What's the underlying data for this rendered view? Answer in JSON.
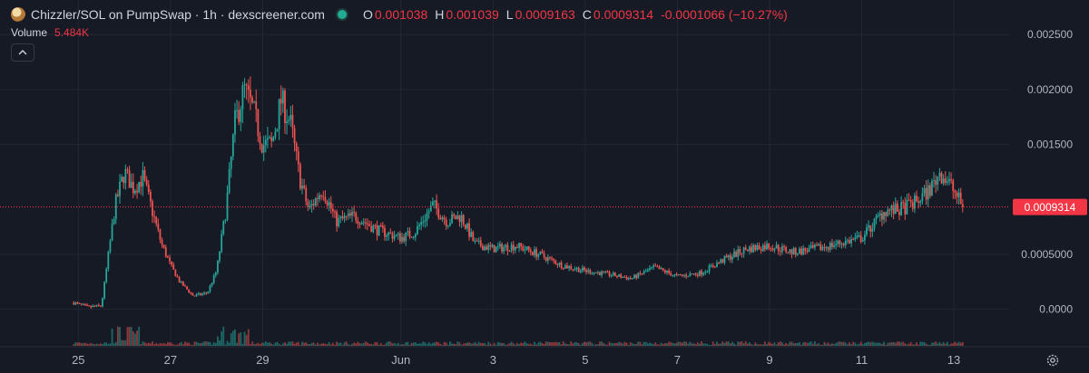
{
  "header": {
    "pair_title": "Chizzler/SOL on PumpSwap · 1h · dexscreener.com",
    "ohlc": [
      {
        "key": "O",
        "value": "0.001038"
      },
      {
        "key": "H",
        "value": "0.001039"
      },
      {
        "key": "L",
        "value": "0.0009163"
      },
      {
        "key": "C",
        "value": "0.0009314"
      }
    ],
    "change": "-0.0001066 (−10.27%)"
  },
  "volume": {
    "label": "Volume",
    "value": "5.484K"
  },
  "colors": {
    "background": "#161a25",
    "up": "#26a69a",
    "down": "#ef5350",
    "grid": "#232733",
    "text": "#b2b5be",
    "price_line": "#f23645"
  },
  "chart_data": {
    "type": "candlestick",
    "interval": "1h",
    "y_ticks": [
      "0.002500",
      "0.002000",
      "0.001500",
      "0.0005000",
      "0.0000"
    ],
    "y_tick_values": [
      0.0025,
      0.002,
      0.0015,
      0.0005,
      0.0
    ],
    "ylim": [
      -0.00025,
      0.00265
    ],
    "x_ticks": [
      "25",
      "27",
      "29",
      "Jun",
      "3",
      "5",
      "7",
      "9",
      "11",
      "13"
    ],
    "x_tick_days": [
      25,
      27,
      29,
      32,
      34,
      36,
      38,
      40,
      42,
      44
    ],
    "xlim_days": [
      23.3,
      45.2
    ],
    "last_price": 0.0009314,
    "last_price_label": "0.0009314",
    "price_path": [
      [
        24.9,
        6e-05
      ],
      [
        25.2,
        2e-05
      ],
      [
        25.5,
        3e-05
      ],
      [
        25.8,
        0.00095
      ],
      [
        26.0,
        0.00125
      ],
      [
        26.2,
        0.0011
      ],
      [
        26.4,
        0.0012
      ],
      [
        26.6,
        0.0009
      ],
      [
        26.8,
        0.0006
      ],
      [
        27.0,
        0.0004
      ],
      [
        27.2,
        0.00025
      ],
      [
        27.5,
        0.00012
      ],
      [
        27.8,
        0.00015
      ],
      [
        28.0,
        0.00035
      ],
      [
        28.2,
        0.0009
      ],
      [
        28.4,
        0.0017
      ],
      [
        28.6,
        0.002
      ],
      [
        28.8,
        0.0018
      ],
      [
        29.0,
        0.0015
      ],
      [
        29.2,
        0.0015
      ],
      [
        29.4,
        0.0019
      ],
      [
        29.6,
        0.0017
      ],
      [
        29.8,
        0.0012
      ],
      [
        30.0,
        0.0009
      ],
      [
        30.3,
        0.0011
      ],
      [
        30.6,
        0.0008
      ],
      [
        31.0,
        0.00085
      ],
      [
        31.5,
        0.00072
      ],
      [
        32.0,
        0.00065
      ],
      [
        32.3,
        0.0007
      ],
      [
        32.7,
        0.00095
      ],
      [
        33.0,
        0.0008
      ],
      [
        33.3,
        0.00085
      ],
      [
        33.6,
        0.0006
      ],
      [
        34.0,
        0.00055
      ],
      [
        34.5,
        0.00058
      ],
      [
        35.0,
        0.0005
      ],
      [
        35.5,
        0.0004
      ],
      [
        36.0,
        0.00035
      ],
      [
        36.5,
        0.00032
      ],
      [
        37.0,
        0.00028
      ],
      [
        37.5,
        0.00038
      ],
      [
        38.0,
        0.0003
      ],
      [
        38.5,
        0.00033
      ],
      [
        39.0,
        0.00045
      ],
      [
        39.5,
        0.00055
      ],
      [
        40.0,
        0.00058
      ],
      [
        40.5,
        0.00052
      ],
      [
        41.0,
        0.00055
      ],
      [
        41.5,
        0.0006
      ],
      [
        42.0,
        0.00065
      ],
      [
        42.5,
        0.0009
      ],
      [
        42.8,
        0.0009
      ],
      [
        43.2,
        0.00098
      ],
      [
        43.5,
        0.0011
      ],
      [
        43.7,
        0.00125
      ],
      [
        43.9,
        0.00115
      ],
      [
        44.2,
        0.0009314
      ]
    ]
  }
}
